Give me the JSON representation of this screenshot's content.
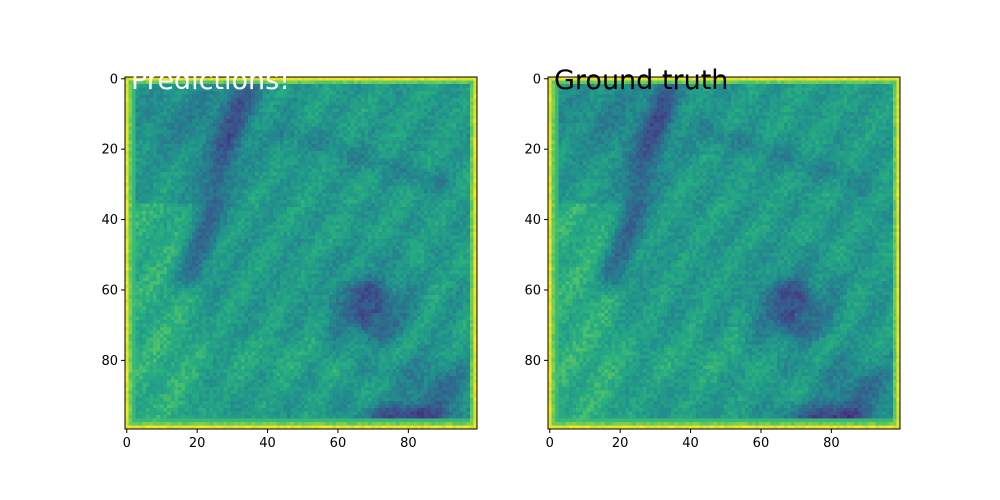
{
  "chart_data": [
    {
      "type": "heatmap",
      "title": "Predictions!",
      "title_color": "#ffffff",
      "colormap": "viridis",
      "grid": false,
      "xlim": [
        0,
        99
      ],
      "ylim": [
        99,
        0
      ],
      "xticks": [
        0,
        20,
        40,
        60,
        80
      ],
      "yticks": [
        0,
        20,
        40,
        60,
        80
      ],
      "image_size": [
        100,
        100
      ],
      "features": {
        "bright_border": true,
        "dark_band_diagonal": "from (x~30, y~5) to (x~18, y~55)",
        "dark_vortex_center": [
          70,
          66
        ],
        "dark_bottom_right_region": [
          80,
          97
        ],
        "light_left_region": true
      }
    },
    {
      "type": "heatmap",
      "title": "Ground truth",
      "title_color": "#000000",
      "colormap": "viridis",
      "grid": false,
      "xlim": [
        0,
        99
      ],
      "ylim": [
        99,
        0
      ],
      "xticks": [
        0,
        20,
        40,
        60,
        80
      ],
      "yticks": [
        0,
        20,
        40,
        60,
        80
      ],
      "image_size": [
        100,
        100
      ],
      "features": {
        "bright_border": true,
        "dark_band_diagonal": "from (x~30, y~5) to (x~18, y~55)",
        "dark_vortex_center": [
          70,
          66
        ],
        "dark_bottom_right_region": [
          80,
          97
        ],
        "light_left_region": true
      }
    }
  ]
}
